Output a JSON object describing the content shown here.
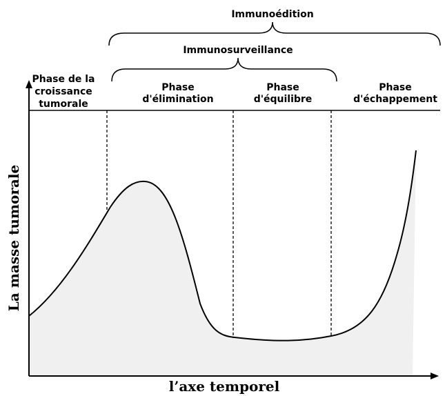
{
  "braces": {
    "outer": "Immunoédition",
    "inner": "Immunosurveillance"
  },
  "phases": [
    {
      "lines": [
        "Phase de la",
        "croissance",
        "tumorale"
      ]
    },
    {
      "lines": [
        "Phase",
        "d'élimination"
      ]
    },
    {
      "lines": [
        "Phase",
        "d'équilibre"
      ]
    },
    {
      "lines": [
        "Phase",
        "d'échappement"
      ]
    }
  ],
  "axes": {
    "y_label": "La masse tumorale",
    "x_label": "l’axe temporel"
  }
}
